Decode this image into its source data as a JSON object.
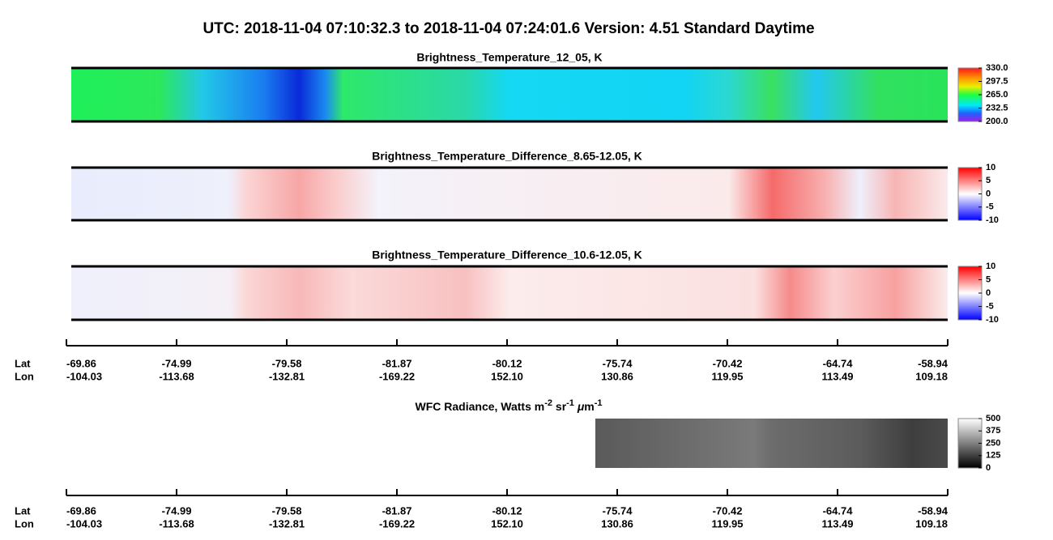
{
  "title": "UTC:  2018-11-04   07:10:32.3  to  2018-11-04   07:24:01.6    Version: 4.51  Standard Daytime",
  "panels": [
    {
      "title": "Brightness_Temperature_12_05, K",
      "colorbar": [
        "330.0",
        "297.5",
        "265.0",
        "232.5",
        "200.0"
      ]
    },
    {
      "title": "Brightness_Temperature_Difference_8.65-12.05, K",
      "colorbar": [
        "10",
        "5",
        "0",
        "-5",
        "-10"
      ]
    },
    {
      "title": "Brightness_Temperature_Difference_10.6-12.05, K",
      "colorbar": [
        "10",
        "5",
        "0",
        "-5",
        "-10"
      ]
    },
    {
      "title": [
        "WFC Radiance, Watts m",
        "-2",
        " sr",
        "-1",
        " ",
        "μ",
        "m",
        "-1"
      ],
      "colorbar": [
        "500",
        "375",
        "250",
        "125",
        "0"
      ]
    }
  ],
  "axis": {
    "lat_label": "Lat",
    "lon_label": "Lon",
    "lat": [
      "-69.86",
      "-74.99",
      "-79.58",
      "-81.87",
      "-80.12",
      "-75.74",
      "-70.42",
      "-64.74",
      "-58.94"
    ],
    "lon": [
      "-104.03",
      "-113.68",
      "-132.81",
      "-169.22",
      "152.10",
      "130.86",
      "119.95",
      "113.49",
      "109.18"
    ]
  }
}
